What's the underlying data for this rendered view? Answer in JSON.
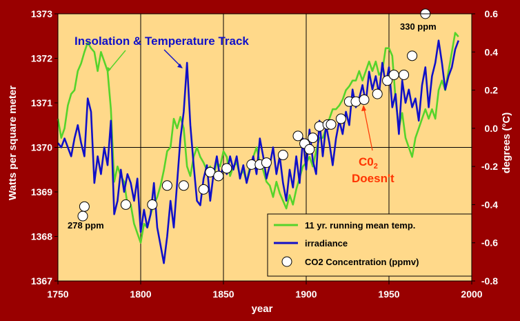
{
  "colors": {
    "background": "#990000",
    "plot_bg": "#FFD98A",
    "grid": "#000000",
    "temp": "#55D42B",
    "irradiance": "#1010C8",
    "co2_fill": "#FFFFFF",
    "annotation_blue": "#1010C8",
    "annotation_red": "#FF3300",
    "axis_text": "#FFFFFF"
  },
  "chart_data": {
    "type": "line",
    "xlabel": "year",
    "ylabel_left": "Watts per square meter",
    "ylabel_right": "degrees (°C)",
    "xlim": [
      1750,
      2000
    ],
    "ylim_left": [
      1367,
      1373
    ],
    "ylim_right": [
      -0.8,
      0.6
    ],
    "x_ticks": [
      "1750",
      "1800",
      "1850",
      "1900",
      "1950",
      "2000"
    ],
    "y_ticks_left": [
      "1367",
      "1368",
      "1369",
      "1370",
      "1371",
      "1372",
      "1373"
    ],
    "y_ticks_right": [
      "-0.8",
      "-0.6",
      "-0.4",
      "-0.2",
      "0.0",
      "0.2",
      "0.4",
      "0.6"
    ],
    "grid": true,
    "legend_position": "bottom-right",
    "legend": [
      {
        "label": "11 yr.  running mean temp.",
        "kind": "line",
        "series": "temp"
      },
      {
        "label": "irradiance",
        "kind": "line",
        "series": "irradiance"
      },
      {
        "label": "CO2 Concentration (ppmv)",
        "kind": "marker",
        "series": "co2"
      }
    ],
    "annotations": {
      "insolation": "Insolation & Temperature  Track",
      "co2_line1": "C0",
      "co2_sub": "2",
      "co2_line2": "Doesn't",
      "ppm_low": "278 ppm",
      "ppm_high": "330 ppm"
    },
    "series": [
      {
        "id": "temp",
        "axis": "right",
        "points": [
          [
            1750,
            0.05
          ],
          [
            1752,
            -0.05
          ],
          [
            1754,
            0.0
          ],
          [
            1756,
            0.12
          ],
          [
            1758,
            0.18
          ],
          [
            1760,
            0.2
          ],
          [
            1762,
            0.3
          ],
          [
            1764,
            0.34
          ],
          [
            1766,
            0.4
          ],
          [
            1768,
            0.45
          ],
          [
            1770,
            0.42
          ],
          [
            1772,
            0.4
          ],
          [
            1774,
            0.3
          ],
          [
            1776,
            0.4
          ],
          [
            1778,
            0.35
          ],
          [
            1780,
            0.3
          ],
          [
            1782,
            0.1
          ],
          [
            1784,
            -0.28
          ],
          [
            1786,
            -0.2
          ],
          [
            1788,
            -0.25
          ],
          [
            1790,
            -0.28
          ],
          [
            1792,
            -0.4
          ],
          [
            1794,
            -0.4
          ],
          [
            1796,
            -0.5
          ],
          [
            1798,
            -0.55
          ],
          [
            1800,
            -0.6
          ],
          [
            1802,
            -0.5
          ],
          [
            1804,
            -0.52
          ],
          [
            1806,
            -0.45
          ],
          [
            1808,
            -0.4
          ],
          [
            1810,
            -0.36
          ],
          [
            1812,
            -0.3
          ],
          [
            1814,
            -0.22
          ],
          [
            1816,
            -0.12
          ],
          [
            1818,
            -0.1
          ],
          [
            1820,
            0.05
          ],
          [
            1822,
            0.0
          ],
          [
            1824,
            0.06
          ],
          [
            1826,
            0.0
          ],
          [
            1828,
            -0.2
          ],
          [
            1830,
            -0.25
          ],
          [
            1832,
            -0.15
          ],
          [
            1834,
            -0.1
          ],
          [
            1836,
            -0.15
          ],
          [
            1838,
            -0.18
          ],
          [
            1840,
            -0.22
          ],
          [
            1842,
            -0.2
          ],
          [
            1844,
            -0.25
          ],
          [
            1846,
            -0.18
          ],
          [
            1848,
            -0.2
          ],
          [
            1850,
            -0.12
          ],
          [
            1852,
            -0.15
          ],
          [
            1854,
            -0.25
          ],
          [
            1856,
            -0.2
          ],
          [
            1858,
            -0.18
          ],
          [
            1860,
            -0.25
          ],
          [
            1862,
            -0.22
          ],
          [
            1864,
            -0.28
          ],
          [
            1866,
            -0.2
          ],
          [
            1868,
            -0.15
          ],
          [
            1870,
            -0.1
          ],
          [
            1872,
            -0.18
          ],
          [
            1874,
            -0.22
          ],
          [
            1876,
            -0.28
          ],
          [
            1878,
            -0.3
          ],
          [
            1880,
            -0.36
          ],
          [
            1882,
            -0.28
          ],
          [
            1884,
            -0.34
          ],
          [
            1886,
            -0.38
          ],
          [
            1888,
            -0.42
          ],
          [
            1890,
            -0.35
          ],
          [
            1892,
            -0.4
          ],
          [
            1894,
            -0.32
          ],
          [
            1896,
            -0.26
          ],
          [
            1898,
            -0.2
          ],
          [
            1900,
            -0.18
          ],
          [
            1902,
            -0.15
          ],
          [
            1904,
            -0.2
          ],
          [
            1906,
            -0.12
          ],
          [
            1908,
            -0.05
          ],
          [
            1910,
            -0.05
          ],
          [
            1912,
            0.0
          ],
          [
            1914,
            0.05
          ],
          [
            1916,
            0.1
          ],
          [
            1918,
            0.1
          ],
          [
            1920,
            0.12
          ],
          [
            1922,
            0.15
          ],
          [
            1924,
            0.2
          ],
          [
            1926,
            0.22
          ],
          [
            1928,
            0.25
          ],
          [
            1930,
            0.25
          ],
          [
            1932,
            0.3
          ],
          [
            1934,
            0.25
          ],
          [
            1936,
            0.3
          ],
          [
            1938,
            0.35
          ],
          [
            1940,
            0.3
          ],
          [
            1942,
            0.35
          ],
          [
            1944,
            0.28
          ],
          [
            1946,
            0.3
          ],
          [
            1948,
            0.42
          ],
          [
            1950,
            0.42
          ],
          [
            1952,
            0.38
          ],
          [
            1954,
            0.15
          ],
          [
            1956,
            0.0
          ],
          [
            1958,
            0.08
          ],
          [
            1960,
            -0.05
          ],
          [
            1962,
            -0.1
          ],
          [
            1964,
            -0.15
          ],
          [
            1966,
            -0.05
          ],
          [
            1968,
            0.0
          ],
          [
            1970,
            0.05
          ],
          [
            1972,
            0.1
          ],
          [
            1974,
            0.05
          ],
          [
            1976,
            0.1
          ],
          [
            1978,
            0.05
          ],
          [
            1980,
            0.2
          ],
          [
            1982,
            0.25
          ],
          [
            1984,
            0.2
          ],
          [
            1986,
            0.3
          ],
          [
            1988,
            0.4
          ],
          [
            1990,
            0.5
          ],
          [
            1992,
            0.48
          ]
        ]
      },
      {
        "id": "irradiance",
        "axis": "left",
        "points": [
          [
            1750,
            1370.1
          ],
          [
            1752,
            1370.0
          ],
          [
            1754,
            1370.2
          ],
          [
            1756,
            1370.0
          ],
          [
            1758,
            1369.8
          ],
          [
            1760,
            1370.2
          ],
          [
            1762,
            1370.5
          ],
          [
            1764,
            1370.1
          ],
          [
            1766,
            1369.8
          ],
          [
            1768,
            1371.1
          ],
          [
            1770,
            1370.8
          ],
          [
            1772,
            1369.2
          ],
          [
            1774,
            1369.8
          ],
          [
            1776,
            1369.4
          ],
          [
            1778,
            1370.0
          ],
          [
            1780,
            1369.6
          ],
          [
            1782,
            1370.6
          ],
          [
            1784,
            1368.5
          ],
          [
            1786,
            1368.8
          ],
          [
            1788,
            1369.5
          ],
          [
            1790,
            1369.0
          ],
          [
            1792,
            1369.4
          ],
          [
            1794,
            1369.2
          ],
          [
            1796,
            1368.8
          ],
          [
            1798,
            1369.3
          ],
          [
            1800,
            1368.1
          ],
          [
            1802,
            1368.6
          ],
          [
            1804,
            1368.2
          ],
          [
            1806,
            1368.5
          ],
          [
            1808,
            1369.2
          ],
          [
            1810,
            1368.2
          ],
          [
            1812,
            1367.8
          ],
          [
            1814,
            1367.4
          ],
          [
            1816,
            1368.0
          ],
          [
            1818,
            1368.8
          ],
          [
            1820,
            1368.2
          ],
          [
            1822,
            1369.2
          ],
          [
            1824,
            1370.2
          ],
          [
            1826,
            1370.8
          ],
          [
            1828,
            1371.9
          ],
          [
            1830,
            1370.5
          ],
          [
            1832,
            1369.6
          ],
          [
            1834,
            1368.8
          ],
          [
            1836,
            1368.7
          ],
          [
            1838,
            1369.3
          ],
          [
            1840,
            1369.6
          ],
          [
            1842,
            1368.8
          ],
          [
            1844,
            1369.4
          ],
          [
            1846,
            1369.8
          ],
          [
            1848,
            1369.3
          ],
          [
            1850,
            1369.6
          ],
          [
            1852,
            1369.4
          ],
          [
            1854,
            1369.8
          ],
          [
            1856,
            1369.5
          ],
          [
            1858,
            1369.8
          ],
          [
            1860,
            1369.3
          ],
          [
            1862,
            1369.6
          ],
          [
            1864,
            1369.2
          ],
          [
            1866,
            1369.5
          ],
          [
            1868,
            1369.8
          ],
          [
            1870,
            1369.4
          ],
          [
            1872,
            1370.2
          ],
          [
            1874,
            1369.8
          ],
          [
            1876,
            1369.3
          ],
          [
            1878,
            1369.6
          ],
          [
            1880,
            1370.0
          ],
          [
            1882,
            1369.4
          ],
          [
            1884,
            1369.8
          ],
          [
            1886,
            1369.2
          ],
          [
            1888,
            1368.8
          ],
          [
            1890,
            1369.5
          ],
          [
            1892,
            1369.1
          ],
          [
            1894,
            1369.8
          ],
          [
            1896,
            1369.2
          ],
          [
            1898,
            1370.2
          ],
          [
            1900,
            1369.5
          ],
          [
            1902,
            1370.4
          ],
          [
            1904,
            1369.7
          ],
          [
            1906,
            1369.4
          ],
          [
            1908,
            1370.6
          ],
          [
            1910,
            1369.8
          ],
          [
            1912,
            1370.5
          ],
          [
            1914,
            1370.1
          ],
          [
            1916,
            1369.6
          ],
          [
            1918,
            1370.2
          ],
          [
            1920,
            1370.6
          ],
          [
            1922,
            1370.3
          ],
          [
            1924,
            1370.8
          ],
          [
            1926,
            1370.5
          ],
          [
            1928,
            1371.3
          ],
          [
            1930,
            1370.9
          ],
          [
            1932,
            1371.1
          ],
          [
            1934,
            1371.4
          ],
          [
            1936,
            1371.0
          ],
          [
            1938,
            1371.7
          ],
          [
            1940,
            1371.3
          ],
          [
            1942,
            1371.6
          ],
          [
            1944,
            1371.2
          ],
          [
            1946,
            1371.9
          ],
          [
            1948,
            1371.4
          ],
          [
            1950,
            1371.8
          ],
          [
            1952,
            1370.9
          ],
          [
            1954,
            1371.2
          ],
          [
            1956,
            1370.3
          ],
          [
            1958,
            1371.5
          ],
          [
            1960,
            1371.0
          ],
          [
            1962,
            1371.3
          ],
          [
            1964,
            1370.9
          ],
          [
            1966,
            1371.1
          ],
          [
            1968,
            1370.6
          ],
          [
            1970,
            1371.4
          ],
          [
            1972,
            1371.8
          ],
          [
            1974,
            1370.9
          ],
          [
            1976,
            1371.6
          ],
          [
            1978,
            1371.9
          ],
          [
            1980,
            1372.4
          ],
          [
            1982,
            1371.9
          ],
          [
            1984,
            1371.3
          ],
          [
            1986,
            1371.6
          ],
          [
            1988,
            1371.8
          ],
          [
            1990,
            1372.2
          ],
          [
            1992,
            1372.4
          ]
        ]
      },
      {
        "id": "co2",
        "axis": "right",
        "ppm_label": "CO2 Concentration (ppmv)",
        "points": [
          [
            1765,
            -0.46
          ],
          [
            1766,
            -0.41
          ],
          [
            1791,
            -0.4
          ],
          [
            1807,
            -0.4
          ],
          [
            1816,
            -0.3
          ],
          [
            1826,
            -0.3
          ],
          [
            1838,
            -0.32
          ],
          [
            1842,
            -0.23
          ],
          [
            1847,
            -0.25
          ],
          [
            1852,
            -0.21
          ],
          [
            1867,
            -0.19
          ],
          [
            1872,
            -0.19
          ],
          [
            1876,
            -0.18
          ],
          [
            1886,
            -0.14
          ],
          [
            1895,
            -0.04
          ],
          [
            1899,
            -0.08
          ],
          [
            1902,
            -0.11
          ],
          [
            1904,
            -0.05
          ],
          [
            1908,
            0.01
          ],
          [
            1913,
            0.02
          ],
          [
            1915,
            0.02
          ],
          [
            1921,
            0.05
          ],
          [
            1926,
            0.14
          ],
          [
            1930,
            0.14
          ],
          [
            1935,
            0.15
          ],
          [
            1943,
            0.18
          ],
          [
            1949,
            0.25
          ],
          [
            1953,
            0.28
          ],
          [
            1959,
            0.28
          ],
          [
            1964,
            0.38
          ],
          [
            1972,
            0.6
          ]
        ]
      }
    ]
  }
}
